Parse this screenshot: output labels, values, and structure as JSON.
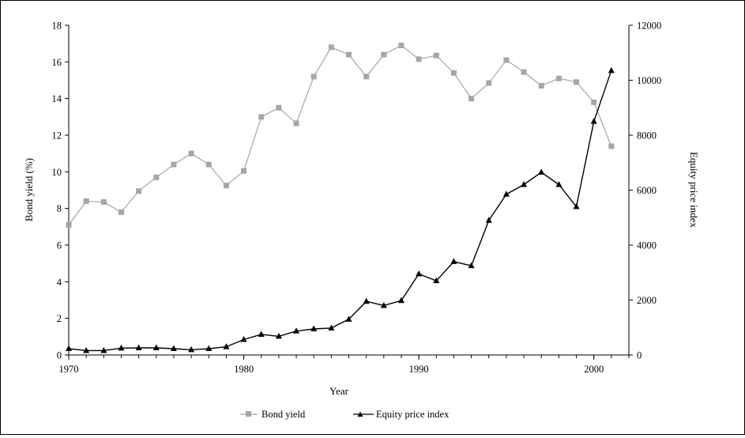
{
  "chart_data": {
    "type": "line",
    "xlabel": "Year",
    "ylabel_left": "Bond yield (%)",
    "ylabel_right": "Equity price index",
    "xlim": [
      1970,
      2002
    ],
    "ylim_left": [
      0,
      18
    ],
    "ylim_right": [
      0,
      12000
    ],
    "xticks": [
      1970,
      1980,
      1990,
      2000
    ],
    "yticks_left": [
      0,
      2,
      4,
      6,
      8,
      10,
      12,
      14,
      16,
      18
    ],
    "yticks_right": [
      0,
      2000,
      4000,
      6000,
      8000,
      10000,
      12000
    ],
    "grid": false,
    "legend_position": "bottom-center",
    "series": [
      {
        "name": "Bond yield",
        "axis": "left",
        "color": "#a6a6a6",
        "marker": "square",
        "x": [
          1970,
          1971,
          1972,
          1973,
          1974,
          1975,
          1976,
          1977,
          1978,
          1979,
          1980,
          1981,
          1982,
          1983,
          1984,
          1985,
          1986,
          1987,
          1988,
          1989,
          1990,
          1991,
          1992,
          1993,
          1994,
          1995,
          1996,
          1997,
          1998,
          1999,
          2000,
          2001
        ],
        "values": [
          7.1,
          8.4,
          8.35,
          7.8,
          8.95,
          9.7,
          10.4,
          11.0,
          10.4,
          9.25,
          10.05,
          13.0,
          13.5,
          12.65,
          15.2,
          16.8,
          16.4,
          15.2,
          16.4,
          16.9,
          16.15,
          16.35,
          15.4,
          14.0,
          14.85,
          16.1,
          15.45,
          14.7,
          15.1,
          14.9,
          13.8,
          11.4
        ]
      },
      {
        "name": "Equity price index",
        "axis": "right",
        "color": "#000000",
        "marker": "triangle",
        "x": [
          1970,
          1971,
          1972,
          1973,
          1974,
          1975,
          1976,
          1977,
          1978,
          1979,
          1980,
          1981,
          1982,
          1983,
          1984,
          1985,
          1986,
          1987,
          1988,
          1989,
          1990,
          1991,
          1992,
          1993,
          1994,
          1995,
          1996,
          1997,
          1998,
          1999,
          2000,
          2001
        ],
        "values": [
          230,
          160,
          160,
          250,
          260,
          260,
          230,
          190,
          230,
          300,
          560,
          750,
          680,
          870,
          950,
          980,
          1300,
          1950,
          1800,
          1980,
          2950,
          2700,
          3400,
          3250,
          4900,
          5850,
          6200,
          6650,
          6200,
          5400,
          8500,
          10350
        ]
      }
    ]
  }
}
